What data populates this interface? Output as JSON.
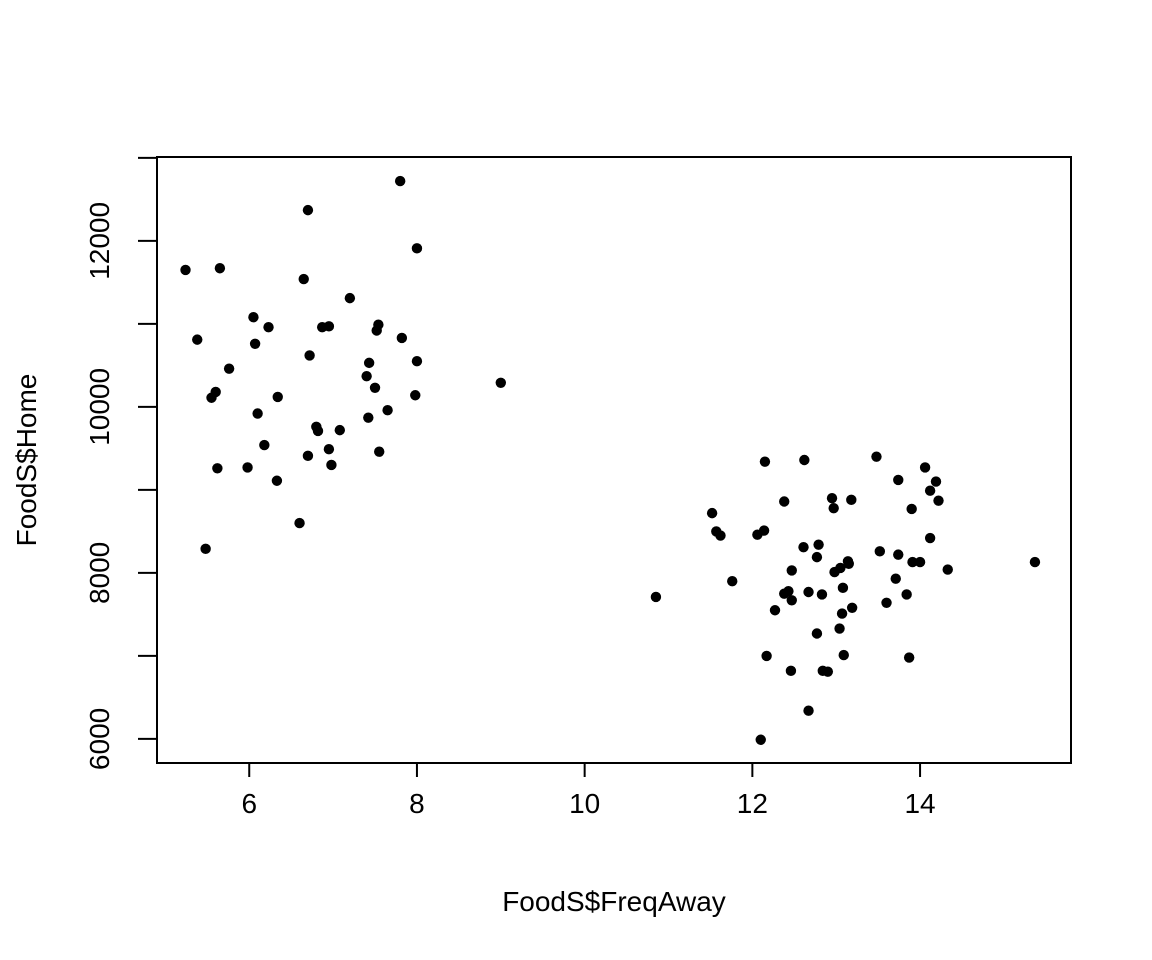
{
  "chart_data": {
    "type": "scatter",
    "title": "",
    "xlabel": "FoodS$FreqAway",
    "ylabel": "FoodS$Home",
    "xlim": [
      4.9,
      15.8
    ],
    "ylim": [
      5710,
      13010
    ],
    "xticks": [
      6,
      8,
      10,
      12,
      14
    ],
    "yticks": [
      6000,
      8000,
      10000,
      12000
    ],
    "ytick_labels_shown": [
      6000,
      8000,
      10000,
      12000
    ],
    "grid": false,
    "legend": "none",
    "marker_color": "#000000",
    "points": [
      [
        5.24,
        11650
      ],
      [
        5.65,
        11670
      ],
      [
        5.38,
        10810
      ],
      [
        5.6,
        10180
      ],
      [
        5.55,
        10110
      ],
      [
        5.76,
        10460
      ],
      [
        5.62,
        9260
      ],
      [
        5.48,
        8290
      ],
      [
        6.05,
        11080
      ],
      [
        6.07,
        10760
      ],
      [
        6.23,
        10960
      ],
      [
        6.1,
        9920
      ],
      [
        6.34,
        10120
      ],
      [
        6.18,
        9540
      ],
      [
        5.98,
        9270
      ],
      [
        6.33,
        9110
      ],
      [
        6.6,
        8600
      ],
      [
        6.7,
        12370
      ],
      [
        6.65,
        11540
      ],
      [
        6.72,
        10620
      ],
      [
        6.87,
        10960
      ],
      [
        6.95,
        10970
      ],
      [
        6.8,
        9760
      ],
      [
        6.82,
        9710
      ],
      [
        6.7,
        9410
      ],
      [
        6.95,
        9490
      ],
      [
        6.98,
        9300
      ],
      [
        7.08,
        9720
      ],
      [
        7.2,
        11310
      ],
      [
        7.4,
        10370
      ],
      [
        7.43,
        10530
      ],
      [
        7.52,
        10920
      ],
      [
        7.54,
        10990
      ],
      [
        7.42,
        9870
      ],
      [
        7.5,
        10230
      ],
      [
        7.55,
        9460
      ],
      [
        7.65,
        9960
      ],
      [
        7.8,
        12720
      ],
      [
        7.82,
        10830
      ],
      [
        8.0,
        11910
      ],
      [
        8.0,
        10550
      ],
      [
        7.98,
        10140
      ],
      [
        9.0,
        10290
      ],
      [
        10.85,
        7710
      ],
      [
        11.52,
        8720
      ],
      [
        11.57,
        8500
      ],
      [
        11.62,
        8450
      ],
      [
        11.76,
        7900
      ],
      [
        12.15,
        9340
      ],
      [
        12.14,
        8510
      ],
      [
        12.06,
        8460
      ],
      [
        12.17,
        7000
      ],
      [
        12.1,
        5990
      ],
      [
        12.27,
        7550
      ],
      [
        12.38,
        8860
      ],
      [
        12.38,
        7750
      ],
      [
        12.43,
        7780
      ],
      [
        12.47,
        8030
      ],
      [
        12.47,
        7670
      ],
      [
        12.46,
        6820
      ],
      [
        12.62,
        9360
      ],
      [
        12.61,
        8310
      ],
      [
        12.67,
        7770
      ],
      [
        12.67,
        6340
      ],
      [
        12.77,
        8190
      ],
      [
        12.79,
        8340
      ],
      [
        12.77,
        7270
      ],
      [
        12.83,
        7740
      ],
      [
        12.84,
        6820
      ],
      [
        12.9,
        6810
      ],
      [
        12.95,
        8900
      ],
      [
        12.97,
        8780
      ],
      [
        12.98,
        8010
      ],
      [
        13.05,
        8060
      ],
      [
        13.04,
        7330
      ],
      [
        13.08,
        7820
      ],
      [
        13.07,
        7510
      ],
      [
        13.09,
        7010
      ],
      [
        13.14,
        8140
      ],
      [
        13.15,
        8110
      ],
      [
        13.18,
        8880
      ],
      [
        13.19,
        7580
      ],
      [
        13.48,
        9400
      ],
      [
        13.52,
        8260
      ],
      [
        13.6,
        7640
      ],
      [
        13.71,
        7930
      ],
      [
        13.74,
        9120
      ],
      [
        13.74,
        8220
      ],
      [
        13.84,
        7740
      ],
      [
        13.87,
        6980
      ],
      [
        13.9,
        8770
      ],
      [
        13.91,
        8130
      ],
      [
        14.0,
        8130
      ],
      [
        14.06,
        9270
      ],
      [
        14.12,
        8990
      ],
      [
        14.12,
        8420
      ],
      [
        14.19,
        9100
      ],
      [
        14.22,
        8870
      ],
      [
        14.33,
        8040
      ],
      [
        15.37,
        8130
      ]
    ]
  }
}
